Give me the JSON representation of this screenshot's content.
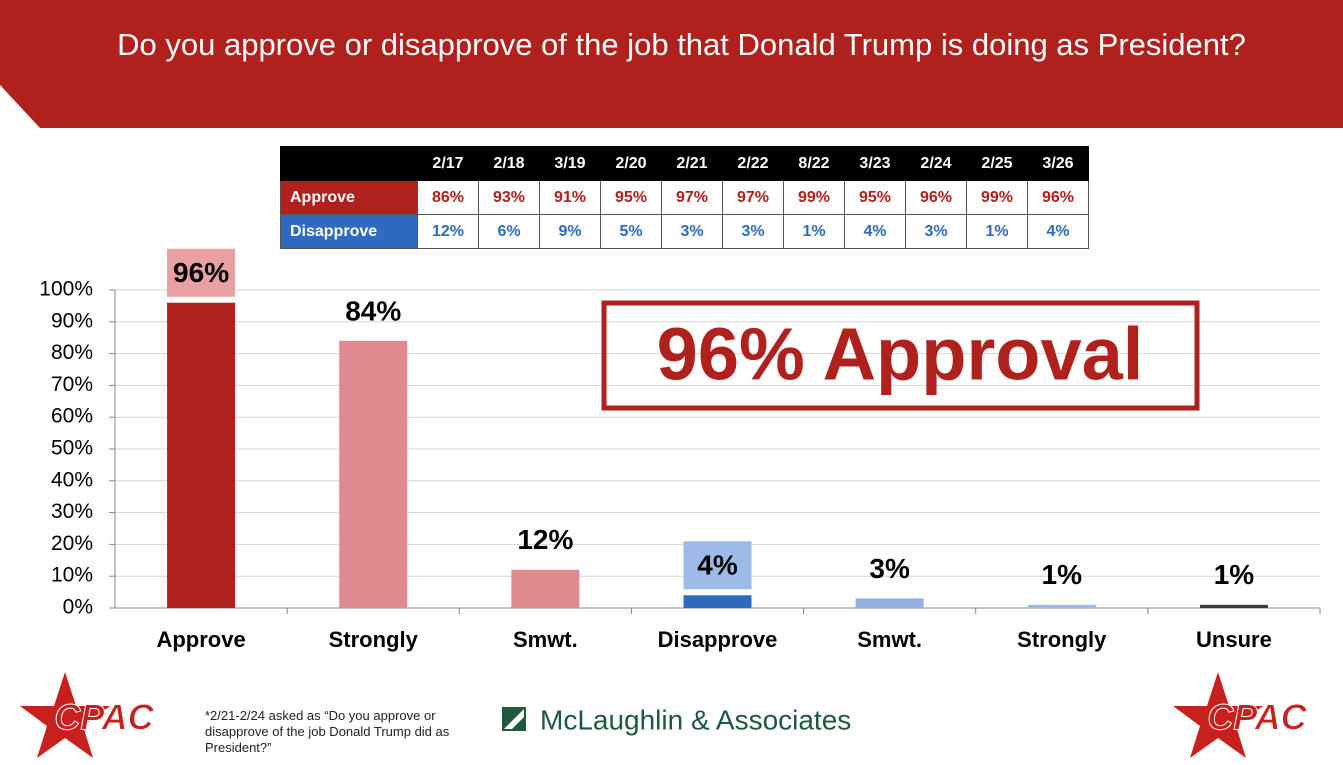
{
  "header": {
    "title": "Do you approve or disapprove of the job that Donald Trump is doing as President?"
  },
  "table": {
    "columns": [
      "2/17",
      "2/18",
      "3/19",
      "2/20",
      "2/21",
      "2/22",
      "8/22",
      "3/23",
      "2/24",
      "2/25",
      "3/26"
    ],
    "rows": [
      {
        "label": "Approve",
        "cells": [
          "86%",
          "93%",
          "91%",
          "95%",
          "97%",
          "97%",
          "99%",
          "95%",
          "96%",
          "99%",
          "96%"
        ]
      },
      {
        "label": "Disapprove",
        "cells": [
          "12%",
          "6%",
          "9%",
          "5%",
          "3%",
          "3%",
          "1%",
          "4%",
          "3%",
          "1%",
          "4%"
        ]
      }
    ]
  },
  "chart_data": {
    "type": "bar",
    "categories": [
      "Approve",
      "Strongly",
      "Smwt.",
      "Disapprove",
      "Smwt.",
      "Strongly",
      "Unsure"
    ],
    "values": [
      96,
      84,
      12,
      4,
      3,
      1,
      1
    ],
    "value_labels": [
      "96%",
      "84%",
      "12%",
      "4%",
      "3%",
      "1%",
      "1%"
    ],
    "colors": [
      "#b0201c",
      "#e08a90",
      "#e08a90",
      "#2e6bc0",
      "#8fb0e0",
      "#9dbbe8",
      "#3a3a3a"
    ],
    "value_label_fills": [
      "#e8a0a4",
      null,
      null,
      "#9dbbe8",
      null,
      null,
      null
    ],
    "ylim": [
      0,
      100
    ],
    "yticks": [
      {
        "value": 0,
        "label": "0%"
      },
      {
        "value": 10,
        "label": "10%"
      },
      {
        "value": 20,
        "label": "20%"
      },
      {
        "value": 30,
        "label": "30%"
      },
      {
        "value": 40,
        "label": "40%"
      },
      {
        "value": 50,
        "label": "50%"
      },
      {
        "value": 60,
        "label": "60%"
      },
      {
        "value": 70,
        "label": "70%"
      },
      {
        "value": 80,
        "label": "80%"
      },
      {
        "value": 90,
        "label": "90%"
      },
      {
        "value": 100,
        "label": "100%"
      }
    ],
    "grid": true
  },
  "callout": "96% Approval",
  "footnote": "*2/21-2/24 asked as “Do you approve or disapprove of the job Donald Trump did as President?”",
  "logos": {
    "left": "CPAC",
    "center": "McLaughlin & Associates",
    "right": "CPAC"
  }
}
